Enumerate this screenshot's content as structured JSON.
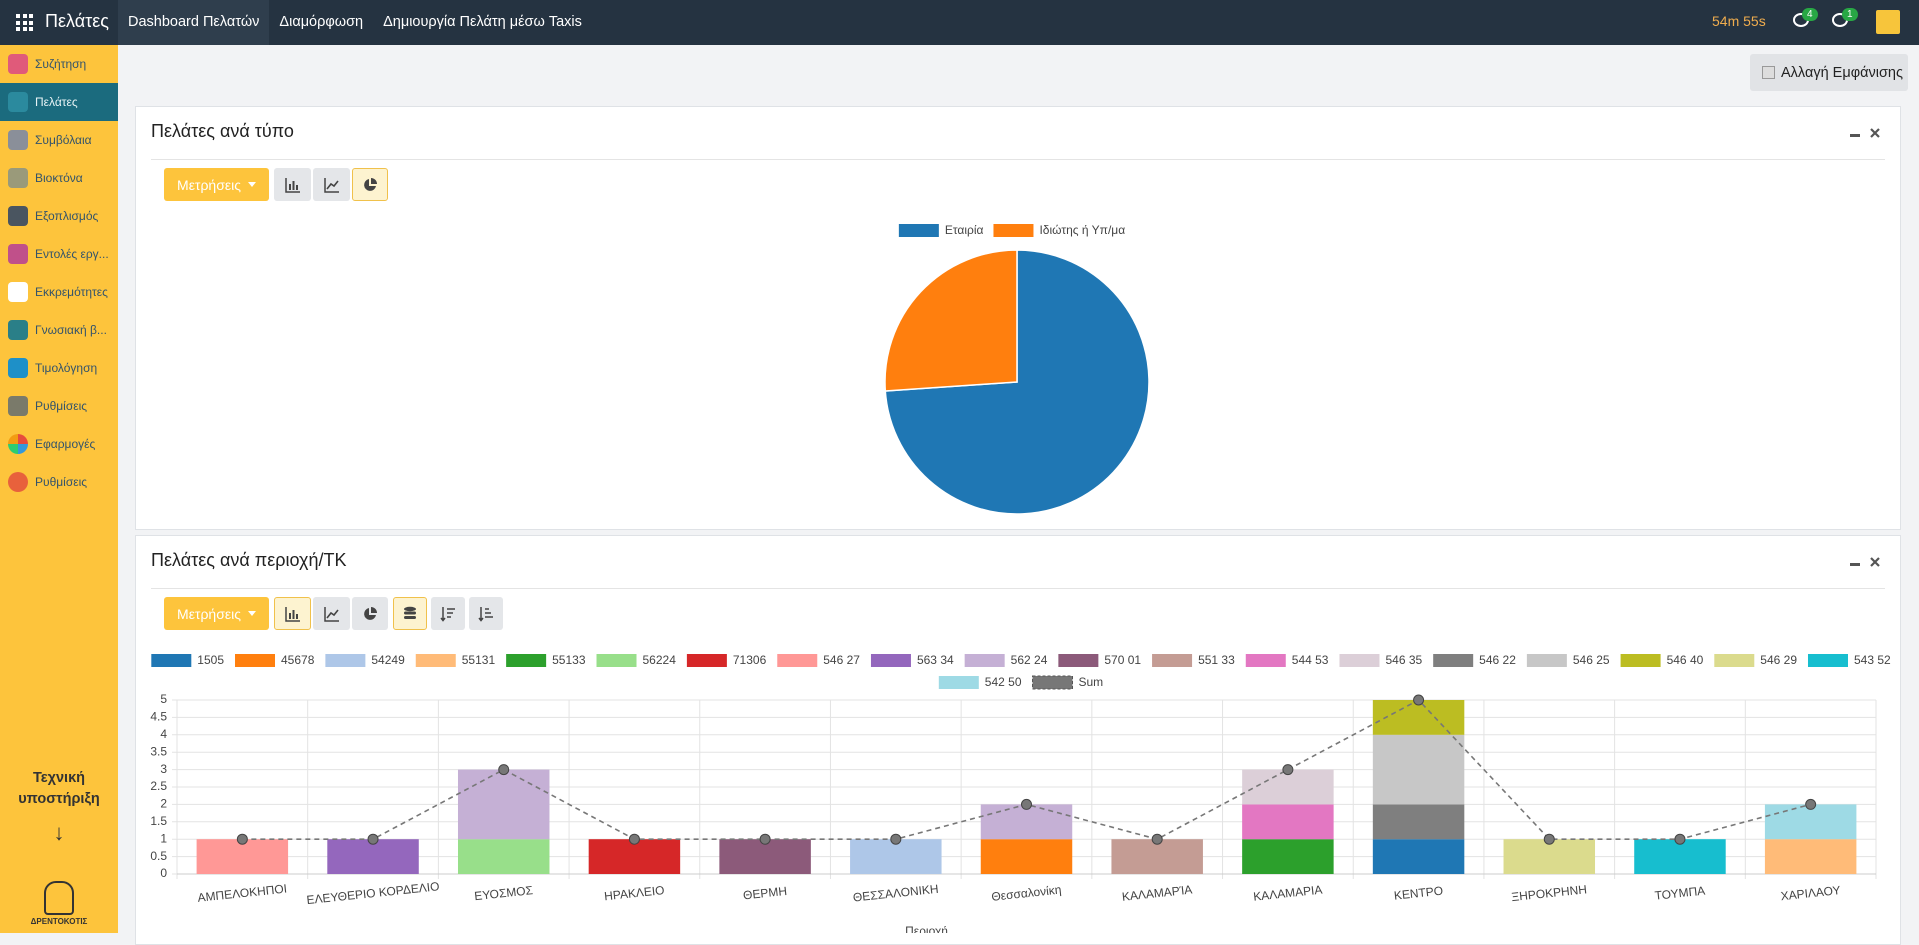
{
  "topbar": {
    "app": "Πελάτες",
    "menu": [
      "Dashboard Πελατών",
      "Διαμόρφωση",
      "Δημιουργία Πελάτη μέσω Taxis"
    ],
    "timer": "54m 55s",
    "messages": 4,
    "activities": 1
  },
  "sidebar": {
    "items": [
      "Συζήτηση",
      "Πελάτες",
      "Συμβόλαια",
      "Βιοκτόνα",
      "Εξοπλισμός",
      "Εντολές εργ...",
      "Εκκρεμότητες",
      "Γνωσιακή β...",
      "Τιμολόγηση",
      "Ρυθμίσεις",
      "Εφαρμογές",
      "Ρυθμίσεις"
    ],
    "support": "Τεχνική υποστήριξη",
    "support_arrow": "↓",
    "logo": "ΔΡΕΝΤΟΚΟΤΙΣ"
  },
  "toggle_button": "Αλλαγή Εμφάνισης",
  "panels": [
    {
      "title": "Πελάτες ανά τύπο",
      "measures": "Μετρήσεις"
    },
    {
      "title": "Πελάτες ανά περιοχή/ΤΚ",
      "measures": "Μετρήσεις"
    }
  ],
  "chart_data": [
    {
      "type": "pie",
      "categories": [
        "Εταιρία",
        "Ιδιώτης ή Υπ/μα"
      ],
      "values": [
        17,
        6
      ],
      "colors": [
        "#1f77b4",
        "#ff7f0e"
      ]
    },
    {
      "type": "bar",
      "stacked": true,
      "xlabel": "Περιοχή",
      "categories": [
        "ΑΜΠΕΛΟΚΗΠΟΙ",
        "ΕΛΕΥΘΕΡΙΟ ΚΟΡΔΕΛΙΟ",
        "ΕΥΟΣΜΟΣ",
        "ΗΡΑΚΛΕΙΟ",
        "ΘΕΡΜΗ",
        "ΘΕΣΣΑΛΟΝΙΚΗ",
        "Θεσσαλονίκη",
        "ΚΑΛΑΜΑΡΊΑ",
        "ΚΑΛΑΜΑΡΙΑ",
        "ΚΕΝΤΡΟ",
        "ΞΗΡΟΚΡΗΝΗ",
        "ΤΟΥΜΠΑ",
        "ΧΑΡΙΛΑΟΥ"
      ],
      "ylim": [
        0,
        5
      ],
      "yticks": [
        0,
        0.5,
        1,
        1.5,
        2,
        2.5,
        3,
        3.5,
        4,
        4.5,
        5
      ],
      "grid": true,
      "series": [
        {
          "name": "1505",
          "color": "#1f77b4",
          "values": [
            null,
            null,
            null,
            null,
            null,
            null,
            null,
            null,
            null,
            1,
            null,
            null,
            null
          ]
        },
        {
          "name": "45678",
          "color": "#ff7f0e",
          "values": [
            null,
            null,
            null,
            null,
            null,
            null,
            1,
            null,
            null,
            null,
            null,
            null,
            null
          ]
        },
        {
          "name": "54249",
          "color": "#aec7e8",
          "values": [
            null,
            null,
            null,
            null,
            null,
            1,
            null,
            null,
            null,
            null,
            null,
            null,
            null
          ]
        },
        {
          "name": "55131",
          "color": "#ffbb78",
          "values": [
            null,
            null,
            null,
            null,
            null,
            null,
            null,
            null,
            null,
            null,
            null,
            null,
            1
          ]
        },
        {
          "name": "55133",
          "color": "#2ca02c",
          "values": [
            null,
            null,
            null,
            null,
            null,
            null,
            null,
            null,
            1,
            null,
            null,
            null,
            null
          ]
        },
        {
          "name": "56224",
          "color": "#98df8a",
          "values": [
            null,
            null,
            1,
            null,
            null,
            null,
            null,
            null,
            null,
            null,
            null,
            null,
            null
          ]
        },
        {
          "name": "71306",
          "color": "#d62728",
          "values": [
            null,
            null,
            null,
            1,
            null,
            null,
            null,
            null,
            null,
            null,
            null,
            null,
            null
          ]
        },
        {
          "name": "546 27",
          "color": "#ff9896",
          "values": [
            1,
            null,
            null,
            null,
            null,
            null,
            null,
            null,
            null,
            null,
            null,
            null,
            null
          ]
        },
        {
          "name": "563 34",
          "color": "#9467bd",
          "values": [
            null,
            1,
            null,
            null,
            null,
            null,
            null,
            null,
            null,
            null,
            null,
            null,
            null
          ]
        },
        {
          "name": "562 24",
          "color": "#c5b0d5",
          "values": [
            null,
            null,
            2,
            null,
            null,
            null,
            1,
            null,
            null,
            null,
            null,
            null,
            null
          ]
        },
        {
          "name": "570 01",
          "color": "#8c5a7a",
          "values": [
            null,
            null,
            null,
            null,
            1,
            null,
            null,
            null,
            null,
            null,
            null,
            null,
            null
          ]
        },
        {
          "name": "551 33",
          "color": "#c49c94",
          "values": [
            null,
            null,
            null,
            null,
            null,
            null,
            null,
            1,
            null,
            null,
            null,
            null,
            null
          ]
        },
        {
          "name": "544 53",
          "color": "#e377c2",
          "values": [
            null,
            null,
            null,
            null,
            null,
            null,
            null,
            null,
            1,
            null,
            null,
            null,
            null
          ]
        },
        {
          "name": "546 35",
          "color": "#dccfd8",
          "values": [
            null,
            null,
            null,
            null,
            null,
            null,
            null,
            null,
            1,
            null,
            null,
            null,
            null
          ]
        },
        {
          "name": "546 22",
          "color": "#7f7f7f",
          "values": [
            null,
            null,
            null,
            null,
            null,
            null,
            null,
            null,
            null,
            1,
            null,
            null,
            null
          ]
        },
        {
          "name": "546 25",
          "color": "#c7c7c7",
          "values": [
            null,
            null,
            null,
            null,
            null,
            null,
            null,
            null,
            null,
            2,
            null,
            null,
            null
          ]
        },
        {
          "name": "546 40",
          "color": "#bcbd22",
          "values": [
            null,
            null,
            null,
            null,
            null,
            null,
            null,
            null,
            null,
            1,
            null,
            null,
            null
          ]
        },
        {
          "name": "546 29",
          "color": "#dbdb8d",
          "values": [
            null,
            null,
            null,
            null,
            null,
            null,
            null,
            null,
            null,
            null,
            1,
            null,
            null
          ]
        },
        {
          "name": "543 52",
          "color": "#17becf",
          "values": [
            null,
            null,
            null,
            null,
            null,
            null,
            null,
            null,
            null,
            null,
            null,
            1,
            null
          ]
        },
        {
          "name": "542 50",
          "color": "#9edae5",
          "values": [
            null,
            null,
            null,
            null,
            null,
            null,
            null,
            null,
            null,
            null,
            null,
            null,
            1
          ]
        },
        {
          "name": "Sum",
          "color": "#777777",
          "type": "line",
          "dashed": true,
          "values": [
            1,
            1,
            3,
            1,
            1,
            1,
            2,
            1,
            3,
            5,
            1,
            1,
            2
          ]
        }
      ]
    }
  ]
}
